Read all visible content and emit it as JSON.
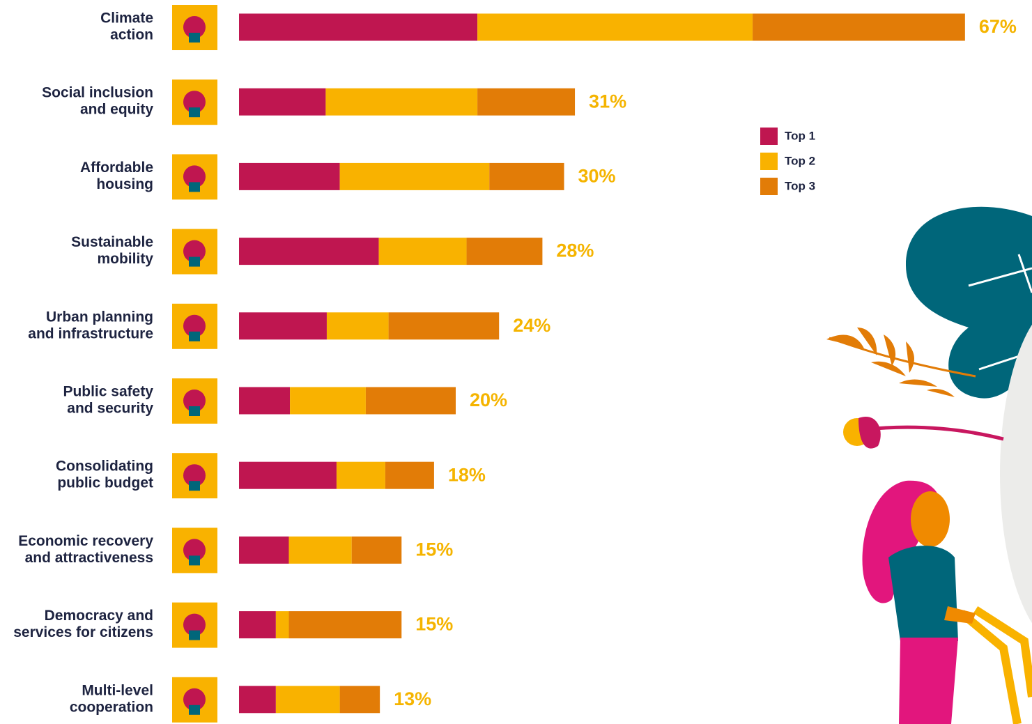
{
  "chart_data": {
    "type": "stacked_barh",
    "categories": [
      [
        "Climate",
        "action"
      ],
      [
        "Social inclusion",
        "and equity"
      ],
      [
        "Affordable",
        "housing"
      ],
      [
        "Sustainable",
        "mobility"
      ],
      [
        "Urban planning",
        "and infrastructure"
      ],
      [
        "Public safety",
        "and security"
      ],
      [
        "Consolidating",
        "public budget"
      ],
      [
        "Economic recovery",
        "and attractiveness"
      ],
      [
        "Democracy and",
        "services for citizens"
      ],
      [
        "Multi-level",
        "cooperation"
      ]
    ],
    "series": [
      {
        "name": "Top 1",
        "color": "#bf1650",
        "values": [
          22,
          8,
          9.3,
          12.9,
          8.1,
          4.7,
          9,
          4.6,
          3.4,
          3.4
        ]
      },
      {
        "name": "Top 2",
        "color": "#f9b200",
        "values": [
          25.4,
          14,
          13.8,
          8.1,
          5.7,
          7,
          4.5,
          5.8,
          1.2,
          5.9
        ]
      },
      {
        "name": "Top 3",
        "color": "#e27c07",
        "values": [
          19.6,
          9,
          6.9,
          7,
          10.2,
          8.3,
          4.5,
          4.6,
          10.4,
          3.7
        ]
      }
    ],
    "totals": [
      67,
      31,
      30,
      28,
      24,
      20,
      18,
      15,
      15,
      13
    ],
    "total_labels": [
      "67%",
      "31%",
      "30%",
      "28%",
      "24%",
      "20%",
      "18%",
      "15%",
      "15%",
      "13%"
    ],
    "legend": "upper right"
  }
}
